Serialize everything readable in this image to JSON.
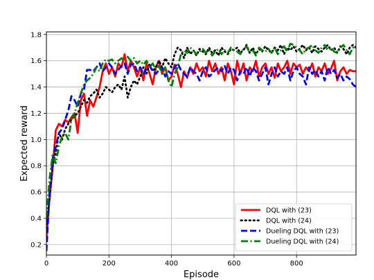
{
  "chart_data": {
    "type": "line",
    "xlabel": "Episode",
    "ylabel": "Expected reward",
    "xlim": [
      0,
      990
    ],
    "ylim": [
      0.12,
      1.82
    ],
    "xticks": [
      0,
      200,
      400,
      600,
      800
    ],
    "yticks": [
      0.2,
      0.4,
      0.6,
      0.8,
      1.0,
      1.2,
      1.4,
      1.6,
      1.8
    ],
    "xtick_labels": [
      "0",
      "200",
      "400",
      "600",
      "800"
    ],
    "ytick_labels": [
      "0.2",
      "0.4",
      "0.6",
      "0.8",
      "1.0",
      "1.2",
      "1.4",
      "1.6",
      "1.8"
    ],
    "grid": true,
    "legend_position": "lower-right",
    "series": [
      {
        "name": "DQL with (23)",
        "color": "#ff0000",
        "dash": "solid",
        "x": [
          0,
          10,
          20,
          30,
          40,
          50,
          60,
          70,
          80,
          90,
          100,
          110,
          120,
          130,
          140,
          150,
          160,
          170,
          180,
          190,
          200,
          210,
          220,
          230,
          240,
          250,
          260,
          270,
          280,
          290,
          300,
          310,
          320,
          330,
          340,
          350,
          360,
          370,
          380,
          390,
          400,
          410,
          420,
          430,
          440,
          450,
          460,
          470,
          480,
          490,
          500,
          510,
          520,
          530,
          540,
          550,
          560,
          570,
          580,
          590,
          600,
          610,
          620,
          630,
          640,
          650,
          660,
          670,
          680,
          690,
          700,
          710,
          720,
          730,
          740,
          750,
          760,
          770,
          780,
          790,
          800,
          810,
          820,
          830,
          840,
          850,
          860,
          870,
          880,
          890,
          900,
          910,
          920,
          930,
          940,
          950,
          960,
          970,
          980,
          990
        ],
        "y": [
          0.25,
          0.55,
          0.78,
          1.07,
          1.12,
          1.1,
          1.15,
          1.13,
          1.17,
          1.2,
          1.05,
          1.3,
          1.35,
          1.18,
          1.3,
          1.25,
          1.32,
          1.4,
          1.52,
          1.58,
          1.5,
          1.55,
          1.48,
          1.58,
          1.55,
          1.65,
          1.52,
          1.6,
          1.55,
          1.48,
          1.55,
          1.45,
          1.58,
          1.5,
          1.42,
          1.55,
          1.6,
          1.5,
          1.55,
          1.45,
          1.48,
          1.57,
          1.5,
          1.4,
          1.52,
          1.47,
          1.55,
          1.5,
          1.58,
          1.52,
          1.55,
          1.48,
          1.6,
          1.52,
          1.58,
          1.5,
          1.55,
          1.45,
          1.58,
          1.52,
          1.42,
          1.6,
          1.5,
          1.58,
          1.45,
          1.55,
          1.52,
          1.6,
          1.48,
          1.55,
          1.58,
          1.5,
          1.55,
          1.47,
          1.58,
          1.52,
          1.55,
          1.6,
          1.5,
          1.58,
          1.55,
          1.57,
          1.5,
          1.55,
          1.52,
          1.58,
          1.48,
          1.55,
          1.52,
          1.58,
          1.5,
          1.54,
          1.6,
          1.45,
          1.52,
          1.55,
          1.5,
          1.53,
          1.52,
          1.52
        ]
      },
      {
        "name": "DQL with (24)",
        "color": "#000000",
        "dash": "dotted",
        "x": [
          0,
          10,
          20,
          30,
          40,
          50,
          60,
          70,
          80,
          90,
          100,
          110,
          120,
          130,
          140,
          150,
          160,
          170,
          180,
          190,
          200,
          210,
          220,
          230,
          240,
          250,
          260,
          270,
          280,
          290,
          300,
          310,
          320,
          330,
          340,
          350,
          360,
          370,
          380,
          390,
          400,
          410,
          420,
          430,
          440,
          450,
          460,
          470,
          480,
          490,
          500,
          510,
          520,
          530,
          540,
          550,
          560,
          570,
          580,
          590,
          600,
          610,
          620,
          630,
          640,
          650,
          660,
          670,
          680,
          690,
          700,
          710,
          720,
          730,
          740,
          750,
          760,
          770,
          780,
          790,
          800,
          810,
          820,
          830,
          840,
          850,
          860,
          870,
          880,
          890,
          900,
          910,
          920,
          930,
          940,
          950,
          960,
          970,
          980,
          990
        ],
        "y": [
          0.35,
          0.55,
          0.8,
          0.9,
          1.05,
          1.0,
          1.08,
          1.12,
          1.15,
          1.18,
          1.2,
          1.25,
          1.3,
          1.28,
          1.33,
          1.35,
          1.38,
          1.32,
          1.35,
          1.4,
          1.38,
          1.36,
          1.4,
          1.42,
          1.38,
          1.48,
          1.32,
          1.4,
          1.45,
          1.42,
          1.48,
          1.55,
          1.5,
          1.58,
          1.52,
          1.55,
          1.6,
          1.55,
          1.62,
          1.58,
          1.55,
          1.65,
          1.7,
          1.68,
          1.62,
          1.7,
          1.65,
          1.68,
          1.64,
          1.69,
          1.67,
          1.65,
          1.7,
          1.66,
          1.68,
          1.64,
          1.7,
          1.67,
          1.65,
          1.69,
          1.68,
          1.7,
          1.66,
          1.68,
          1.72,
          1.66,
          1.7,
          1.65,
          1.69,
          1.67,
          1.71,
          1.68,
          1.66,
          1.7,
          1.68,
          1.72,
          1.65,
          1.7,
          1.68,
          1.71,
          1.67,
          1.69,
          1.72,
          1.68,
          1.7,
          1.66,
          1.71,
          1.69,
          1.67,
          1.7,
          1.72,
          1.68,
          1.7,
          1.66,
          1.71,
          1.69,
          1.65,
          1.7,
          1.72,
          1.7
        ]
      },
      {
        "name": "Dueling DQL with (23)",
        "color": "#0000ff",
        "dash": "dashed",
        "x": [
          0,
          10,
          20,
          30,
          40,
          50,
          60,
          70,
          80,
          90,
          100,
          110,
          120,
          130,
          140,
          150,
          160,
          170,
          180,
          190,
          200,
          210,
          220,
          230,
          240,
          250,
          260,
          270,
          280,
          290,
          300,
          310,
          320,
          330,
          340,
          350,
          360,
          370,
          380,
          390,
          400,
          410,
          420,
          430,
          440,
          450,
          460,
          470,
          480,
          490,
          500,
          510,
          520,
          530,
          540,
          550,
          560,
          570,
          580,
          590,
          600,
          610,
          620,
          630,
          640,
          650,
          660,
          670,
          680,
          690,
          700,
          710,
          720,
          730,
          740,
          750,
          760,
          770,
          780,
          790,
          800,
          810,
          820,
          830,
          840,
          850,
          860,
          870,
          880,
          890,
          900,
          910,
          920,
          930,
          940,
          950,
          960,
          970,
          980,
          990
        ],
        "y": [
          0.15,
          0.6,
          0.85,
          0.95,
          1.05,
          1.08,
          1.15,
          1.22,
          1.33,
          1.3,
          1.25,
          1.35,
          1.38,
          1.53,
          1.53,
          1.52,
          1.55,
          1.58,
          1.52,
          1.55,
          1.58,
          1.55,
          1.5,
          1.53,
          1.56,
          1.58,
          1.5,
          1.57,
          1.58,
          1.52,
          1.55,
          1.5,
          1.54,
          1.56,
          1.52,
          1.5,
          1.53,
          1.55,
          1.48,
          1.52,
          1.5,
          1.55,
          1.58,
          1.53,
          1.5,
          1.48,
          1.55,
          1.52,
          1.5,
          1.45,
          1.52,
          1.55,
          1.48,
          1.5,
          1.53,
          1.55,
          1.52,
          1.56,
          1.5,
          1.55,
          1.53,
          1.45,
          1.52,
          1.5,
          1.55,
          1.48,
          1.55,
          1.52,
          1.45,
          1.5,
          1.55,
          1.42,
          1.5,
          1.55,
          1.48,
          1.52,
          1.5,
          1.55,
          1.45,
          1.52,
          1.55,
          1.5,
          1.48,
          1.42,
          1.55,
          1.5,
          1.53,
          1.48,
          1.52,
          1.45,
          1.55,
          1.5,
          1.53,
          1.47,
          1.5,
          1.45,
          1.48,
          1.46,
          1.42,
          1.4
        ]
      },
      {
        "name": "Dueling DQL with (24)",
        "color": "#008000",
        "dash": "dashdot",
        "x": [
          0,
          10,
          20,
          30,
          40,
          50,
          60,
          70,
          80,
          90,
          100,
          110,
          120,
          130,
          140,
          150,
          160,
          170,
          180,
          190,
          200,
          210,
          220,
          230,
          240,
          250,
          260,
          270,
          280,
          290,
          300,
          310,
          320,
          330,
          340,
          350,
          360,
          370,
          380,
          390,
          400,
          410,
          420,
          430,
          440,
          450,
          460,
          470,
          480,
          490,
          500,
          510,
          520,
          530,
          540,
          550,
          560,
          570,
          580,
          590,
          600,
          610,
          620,
          630,
          640,
          650,
          660,
          670,
          680,
          690,
          700,
          710,
          720,
          730,
          740,
          750,
          760,
          770,
          780,
          790,
          800,
          810,
          820,
          830,
          840,
          850,
          860,
          870,
          880,
          890,
          900,
          910,
          920,
          930,
          940,
          950,
          960,
          970,
          980,
          990
        ],
        "y": [
          0.4,
          0.7,
          0.88,
          0.82,
          0.95,
          1.02,
          1.05,
          1.0,
          1.15,
          1.2,
          1.28,
          1.35,
          1.42,
          1.45,
          1.47,
          1.5,
          1.55,
          1.52,
          1.58,
          1.61,
          1.6,
          1.61,
          1.58,
          1.6,
          1.62,
          1.6,
          1.63,
          1.6,
          1.62,
          1.58,
          1.6,
          1.57,
          1.6,
          1.55,
          1.58,
          1.53,
          1.56,
          1.5,
          1.55,
          1.45,
          1.4,
          1.5,
          1.55,
          1.65,
          1.68,
          1.66,
          1.7,
          1.68,
          1.65,
          1.67,
          1.69,
          1.66,
          1.68,
          1.64,
          1.67,
          1.69,
          1.65,
          1.68,
          1.66,
          1.7,
          1.68,
          1.67,
          1.65,
          1.69,
          1.71,
          1.66,
          1.68,
          1.64,
          1.7,
          1.68,
          1.67,
          1.69,
          1.66,
          1.7,
          1.65,
          1.68,
          1.71,
          1.67,
          1.73,
          1.72,
          1.7,
          1.68,
          1.65,
          1.69,
          1.7,
          1.72,
          1.68,
          1.66,
          1.7,
          1.72,
          1.68,
          1.7,
          1.67,
          1.66,
          1.7,
          1.72,
          1.68,
          1.65,
          1.7,
          1.7
        ]
      }
    ]
  }
}
